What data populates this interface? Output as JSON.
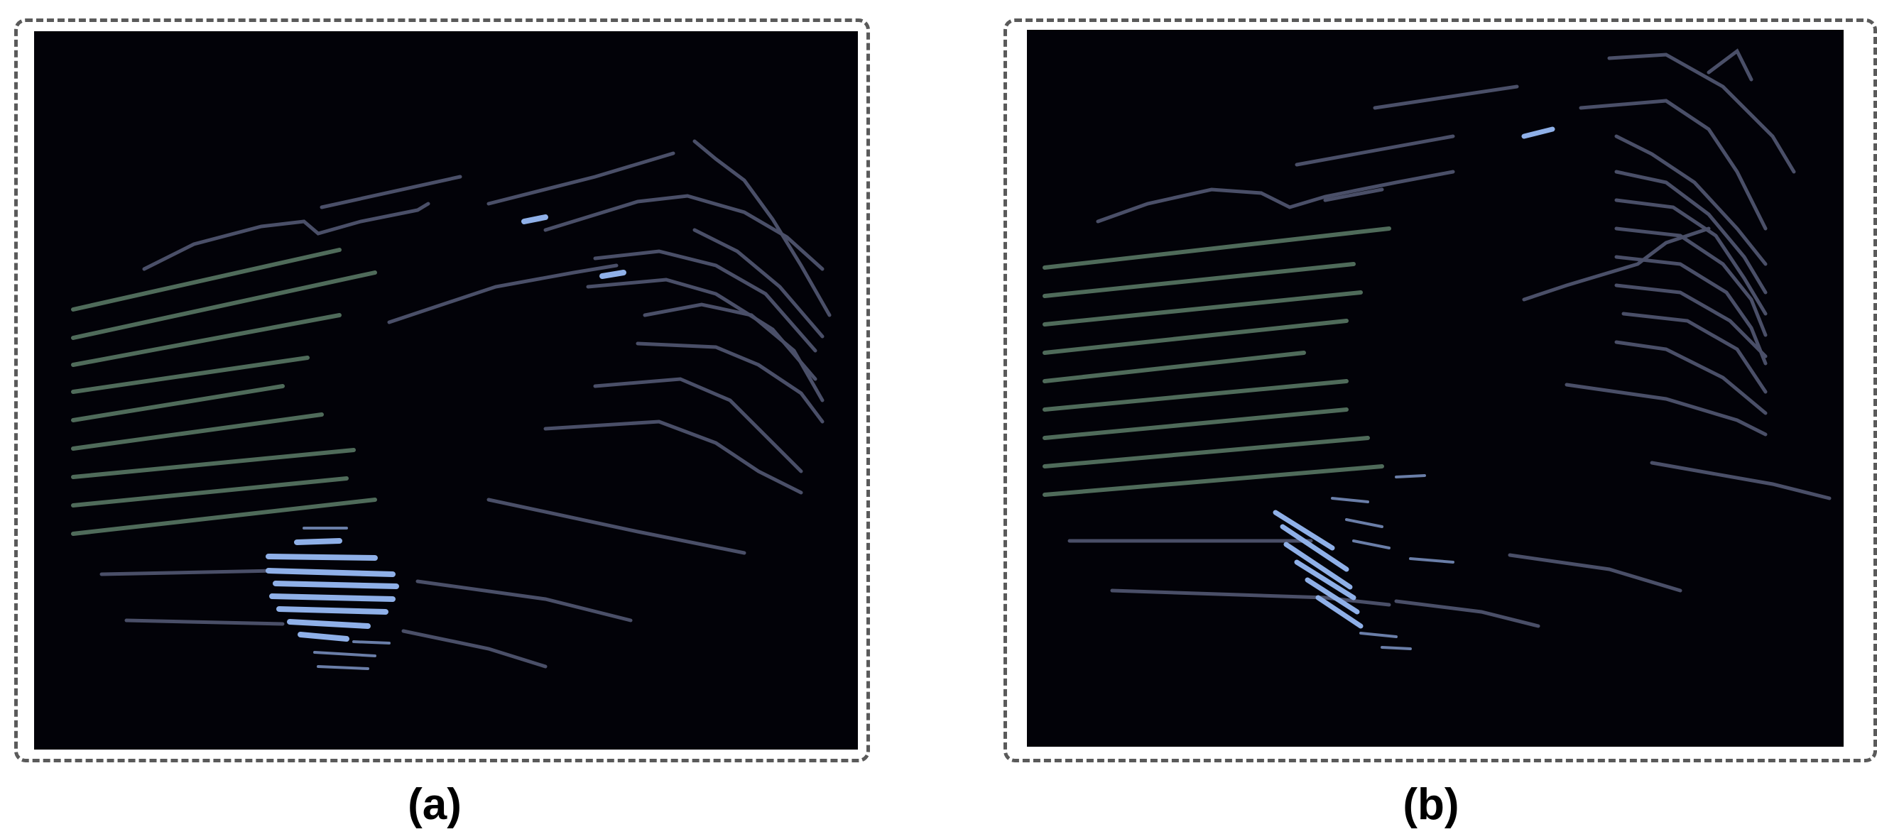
{
  "panels": [
    {
      "caption": "(a)"
    },
    {
      "caption": "(b)"
    }
  ],
  "colors": {
    "background": "#020208",
    "ground_rings": "#4f6b5a",
    "building_lines": "#4a4f68",
    "object_points": "#8fb0e8",
    "border": "#5a5a5a"
  }
}
